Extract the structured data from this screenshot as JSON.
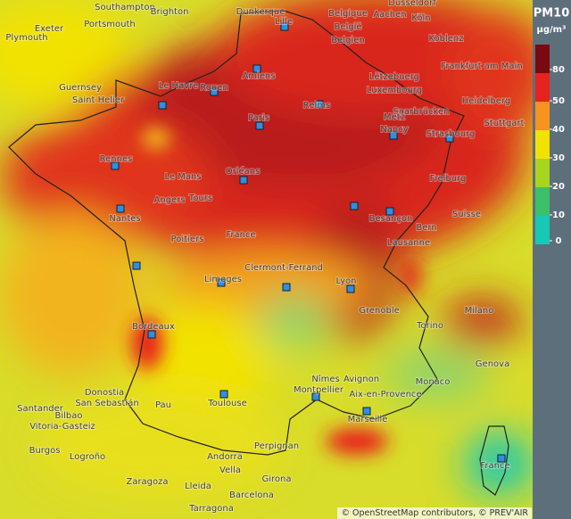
{
  "legend": {
    "title": "PM10",
    "unit": "µg/m³",
    "ticks": [
      80,
      50,
      40,
      30,
      20,
      10,
      0
    ],
    "colors": [
      "#7a0a12",
      "#e8231f",
      "#f7931e",
      "#f2e200",
      "#a8d41e",
      "#3cc06a",
      "#17c8b6"
    ]
  },
  "cities": [
    "Southampton",
    "Brighton",
    "Portsmouth",
    "Exeter",
    "Plymouth",
    "Dunkerque",
    "Lille",
    "Belgique",
    "België",
    "Belgien",
    "Aachen",
    "Düsseldorf",
    "Köln",
    "Koblenz",
    "Frankfurt am Main",
    "Guernsey",
    "Saint Helier",
    "Le Havre",
    "Rouen",
    "Amiens",
    "Reims",
    "Lëtzebuerg",
    "Luxembourg",
    "Saarbrücken",
    "Heidelberg",
    "Stuttgart",
    "Metz",
    "Nancy",
    "Strasbourg",
    "Paris",
    "Rennes",
    "Le Mans",
    "Orléans",
    "Angers",
    "Tours",
    "Nantes",
    "Poitiers",
    "France",
    "Freiburg",
    "Besançon",
    "Bern",
    "Lausanne",
    "Suisse",
    "Clermont-Ferrand",
    "Limoges",
    "Lyon",
    "Grenoble",
    "Milano",
    "Torino",
    "Genova",
    "Bordeaux",
    "Toulouse",
    "Montpellier",
    "Nîmes",
    "Avignon",
    "Aix-en-Provence",
    "Marseille",
    "Monaco",
    "Donostia",
    "San Sebastián",
    "Pau",
    "Santander",
    "Bilbao",
    "Vitoria-Gasteiz",
    "Burgos",
    "Logroño",
    "Andorra",
    "Vella",
    "Perpignan",
    "Girona",
    "Zaragoza",
    "Lleida",
    "Barcelona",
    "Tarragona",
    "France"
  ],
  "attribution": "© OpenStreetMap contributors, © PREV'AIR"
}
